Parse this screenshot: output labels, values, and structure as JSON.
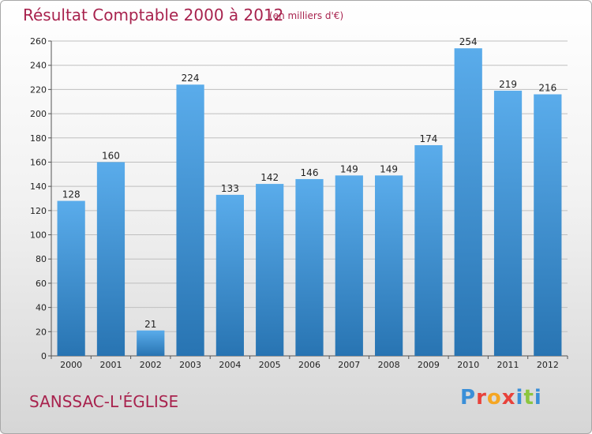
{
  "header": {
    "title": "Résultat Comptable 2000 à 2012",
    "subtitle": "(en milliers d'€)"
  },
  "footer": {
    "town": "SANSSAC-L'ÉGLISE",
    "logo_text": "Proxiti",
    "logo_letters": [
      {
        "ch": "P",
        "color": "#3a8fd8"
      },
      {
        "ch": "r",
        "color": "#e8423b"
      },
      {
        "ch": "o",
        "color": "#f5a623"
      },
      {
        "ch": "x",
        "color": "#e8423b"
      },
      {
        "ch": "i",
        "color": "#3a8fd8"
      },
      {
        "ch": "t",
        "color": "#8cc63f"
      },
      {
        "ch": "i",
        "color": "#3a8fd8"
      }
    ]
  },
  "colors": {
    "bar_light": "#5aaceb",
    "bar_dark": "#2874b2",
    "grid": "#bfbfbf",
    "axis": "#555555"
  },
  "chart_data": {
    "type": "bar",
    "title": "Résultat Comptable 2000 à 2012",
    "subtitle": "(en milliers d'€)",
    "xlabel": "",
    "ylabel": "",
    "categories": [
      "2000",
      "2001",
      "2002",
      "2003",
      "2004",
      "2005",
      "2006",
      "2007",
      "2008",
      "2009",
      "2010",
      "2011",
      "2012"
    ],
    "values": [
      128,
      160,
      21,
      224,
      133,
      142,
      146,
      149,
      149,
      174,
      254,
      219,
      216
    ],
    "ylim": [
      0,
      260
    ],
    "yticks": [
      0,
      20,
      40,
      60,
      80,
      100,
      120,
      140,
      160,
      180,
      200,
      220,
      240,
      260
    ],
    "grid": true,
    "legend": "none"
  }
}
